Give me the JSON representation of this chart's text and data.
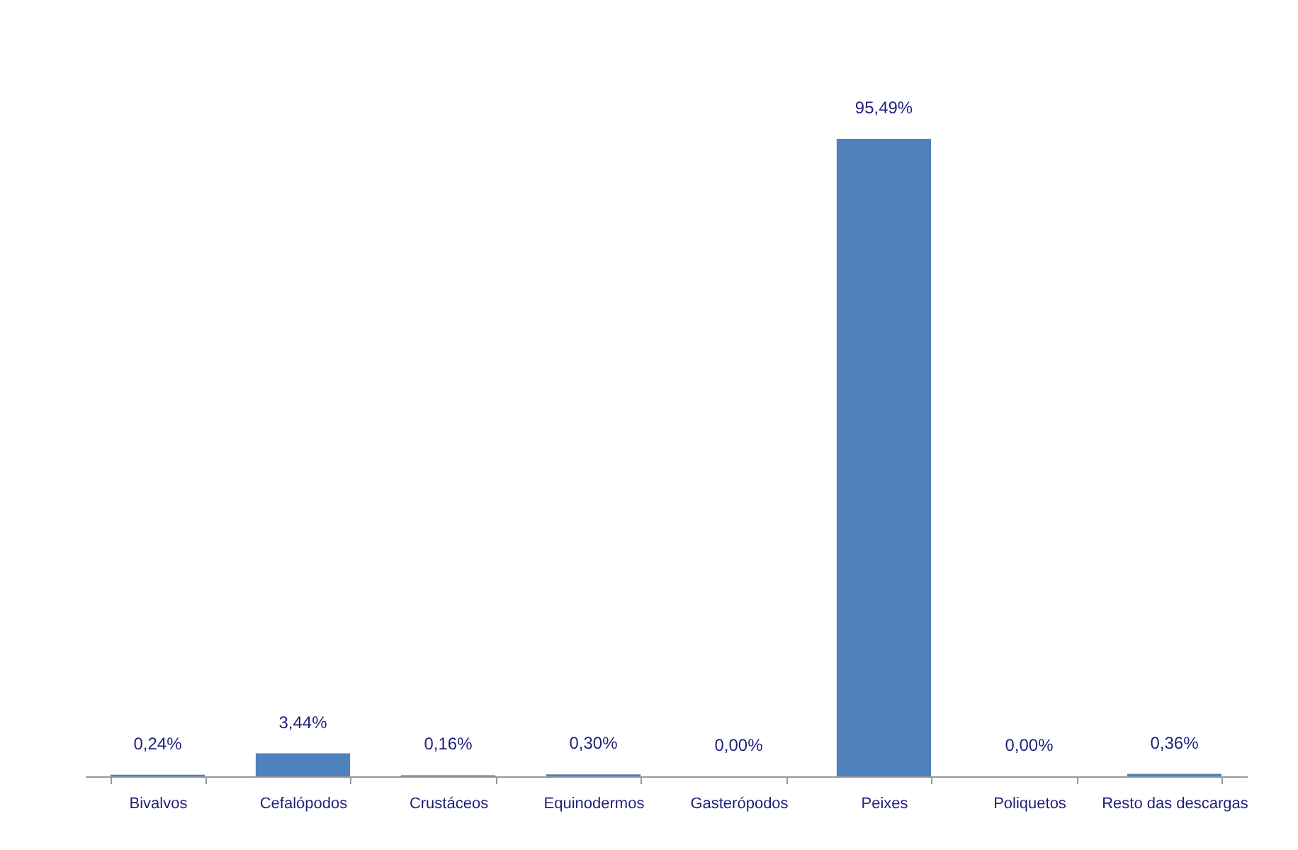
{
  "chart_data": {
    "type": "bar",
    "categories": [
      "Bivalvos",
      "Cefalópodos",
      "Crustáceos",
      "Equinodermos",
      "Gasterópodos",
      "Peixes",
      "Poliquetos",
      "Resto das descargas"
    ],
    "values": [
      0.24,
      3.44,
      0.16,
      0.3,
      0.0,
      95.49,
      0.0,
      0.36
    ],
    "value_labels": [
      "0,24%",
      "3,44%",
      "0,16%",
      "0,30%",
      "0,00%",
      "95,49%",
      "0,00%",
      "0,36%"
    ],
    "color": "#4f81bd"
  }
}
